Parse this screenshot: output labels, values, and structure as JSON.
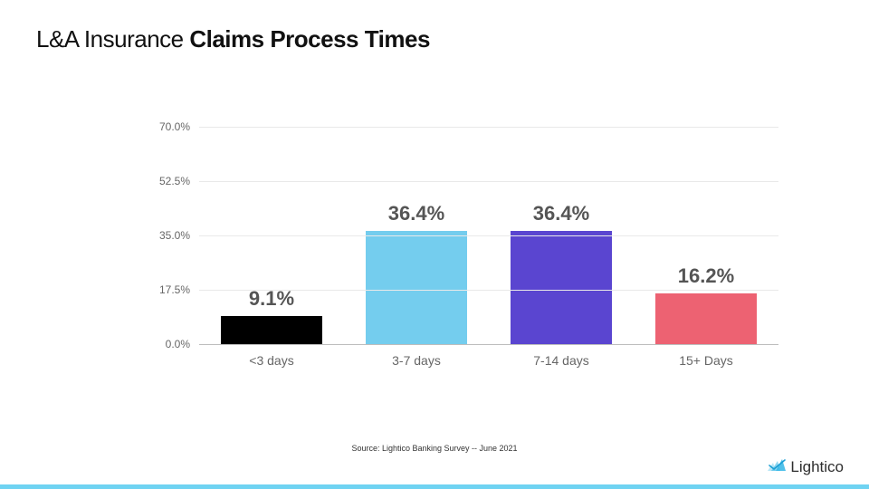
{
  "title": {
    "light": "L&A Insurance ",
    "bold": "Claims Process Times"
  },
  "chart": {
    "type": "bar",
    "ylim": [
      0,
      70
    ],
    "yticks": [
      0.0,
      17.5,
      35.0,
      52.5,
      70.0
    ],
    "ytick_labels": [
      "0.0%",
      "17.5%",
      "35.0%",
      "52.5%",
      "70.0%"
    ],
    "grid_color": "#e9e9e9",
    "baseline_color": "#bdbdbd",
    "bar_width_pct": 70,
    "value_label_fontsize": 22,
    "value_label_color": "#555555",
    "xlabel_fontsize": 14,
    "xlabel_color": "#666666",
    "categories": [
      "<3 days",
      "3-7 days",
      "7-14 days",
      "15+ Days"
    ],
    "values": [
      9.1,
      36.4,
      36.4,
      16.2
    ],
    "value_labels": [
      "9.1%",
      "36.4%",
      "36.4%",
      "16.2%"
    ],
    "bar_colors": [
      "#000000",
      "#74cdee",
      "#5a45d0",
      "#ed6272"
    ]
  },
  "source": "Source: Lightico Banking Survey -- June 2021",
  "logo": {
    "text": "Lightico",
    "icon_color": "#33b6e6"
  },
  "bottom_bar_color": "#6fd3f2",
  "background_color": "#ffffff"
}
